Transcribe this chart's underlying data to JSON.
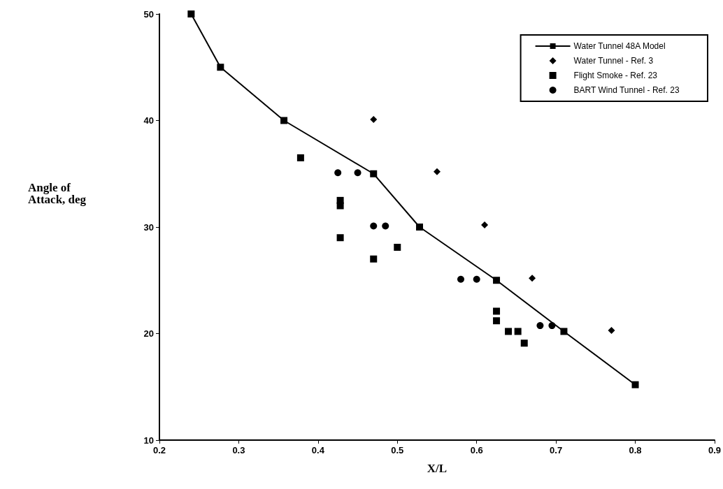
{
  "chart_data": {
    "type": "scatter",
    "xlabel": "X/L",
    "ylabel": "Angle of\nAttack, deg",
    "xlim": [
      0.2,
      0.9
    ],
    "xticks": [
      0.2,
      0.3,
      0.4,
      0.5,
      0.6,
      0.7,
      0.8,
      0.9
    ],
    "ylim": [
      10,
      50
    ],
    "yticks": [
      10,
      20,
      30,
      40,
      50
    ],
    "grid": false,
    "legend": "top right",
    "series": [
      {
        "name": "Water Tunnel 48A Model",
        "type": "line",
        "marker": "square",
        "color": "#000000",
        "x": [
          0.24,
          0.277,
          0.357,
          0.47,
          0.528,
          0.625,
          0.71,
          0.8
        ],
        "values": [
          50,
          45,
          40,
          35,
          30,
          25,
          20.2,
          15.2
        ]
      },
      {
        "name": "Water Tunnel - Ref. 3",
        "marker": "diamond",
        "color": "#000000",
        "x": [
          0.47,
          0.55,
          0.61,
          0.67,
          0.77
        ],
        "values": [
          40.1,
          35.2,
          30.2,
          25.2,
          20.3
        ]
      },
      {
        "name": "Flight Smoke - Ref. 23",
        "marker": "square",
        "color": "#000000",
        "x": [
          0.378,
          0.428,
          0.428,
          0.428,
          0.47,
          0.5,
          0.625,
          0.625,
          0.64,
          0.652,
          0.66
        ],
        "values": [
          36.5,
          32.5,
          32,
          29,
          27,
          28.1,
          22.1,
          21.2,
          20.2,
          20.2,
          19.1
        ]
      },
      {
        "name": "BART Wind Tunnel - Ref. 23",
        "marker": "circle",
        "color": "#000000",
        "x": [
          0.425,
          0.45,
          0.47,
          0.485,
          0.58,
          0.6,
          0.68,
          0.695
        ],
        "values": [
          35.1,
          35.1,
          30.1,
          30.1,
          25.1,
          25.1,
          20.75,
          20.75
        ]
      }
    ]
  }
}
